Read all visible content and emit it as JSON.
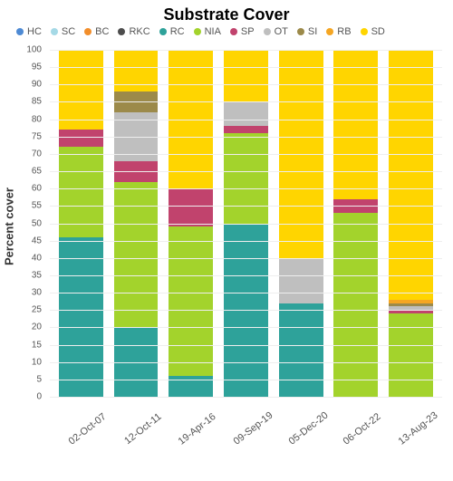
{
  "chart": {
    "type": "stacked-bar",
    "title": "Substrate Cover",
    "ylabel": "Percent cover",
    "ylim": [
      0,
      100
    ],
    "ytick_step": 5,
    "grid_color": "#eeeeee",
    "background_color": "#ffffff",
    "title_fontsize": 18,
    "label_fontsize": 13,
    "tick_fontsize": 10,
    "categories": [
      "02-Oct-07",
      "12-Oct-11",
      "19-Apr-16",
      "09-Sep-19",
      "05-Dec-20",
      "06-Oct-22",
      "13-Aug-23"
    ],
    "series": [
      {
        "key": "HC",
        "label": "HC",
        "color": "#4e8ad4"
      },
      {
        "key": "SC",
        "label": "SC",
        "color": "#a5d9e6"
      },
      {
        "key": "BC",
        "label": "BC",
        "color": "#f28e2b"
      },
      {
        "key": "RKC",
        "label": "RKC",
        "color": "#4d4d4d"
      },
      {
        "key": "RC",
        "label": "RC",
        "color": "#2ea29a"
      },
      {
        "key": "NIA",
        "label": "NIA",
        "color": "#a3d32c"
      },
      {
        "key": "SP",
        "label": "SP",
        "color": "#c1436d"
      },
      {
        "key": "OT",
        "label": "OT",
        "color": "#bfbfbf"
      },
      {
        "key": "SI",
        "label": "SI",
        "color": "#9c8a4a"
      },
      {
        "key": "RB",
        "label": "RB",
        "color": "#f5a623"
      },
      {
        "key": "SD",
        "label": "SD",
        "color": "#ffd500"
      }
    ],
    "data": {
      "02-Oct-07": {
        "RC": 46,
        "NIA": 26,
        "SP": 5,
        "SD": 23
      },
      "12-Oct-11": {
        "RC": 20,
        "NIA": 42,
        "SP": 6,
        "OT": 14,
        "SI": 6,
        "SD": 12
      },
      "19-Apr-16": {
        "RC": 6,
        "NIA": 43,
        "SP": 11,
        "SD": 40
      },
      "09-Sep-19": {
        "RC": 50,
        "NIA": 26,
        "SP": 2,
        "OT": 7,
        "SD": 15
      },
      "05-Dec-20": {
        "RC": 27,
        "OT": 13,
        "SD": 60
      },
      "06-Oct-22": {
        "NIA": 53,
        "SP": 4,
        "SD": 43
      },
      "13-Aug-23": {
        "NIA": 24,
        "SP": 1,
        "OT": 1,
        "SI": 1,
        "RB": 1,
        "SD": 72
      }
    }
  }
}
